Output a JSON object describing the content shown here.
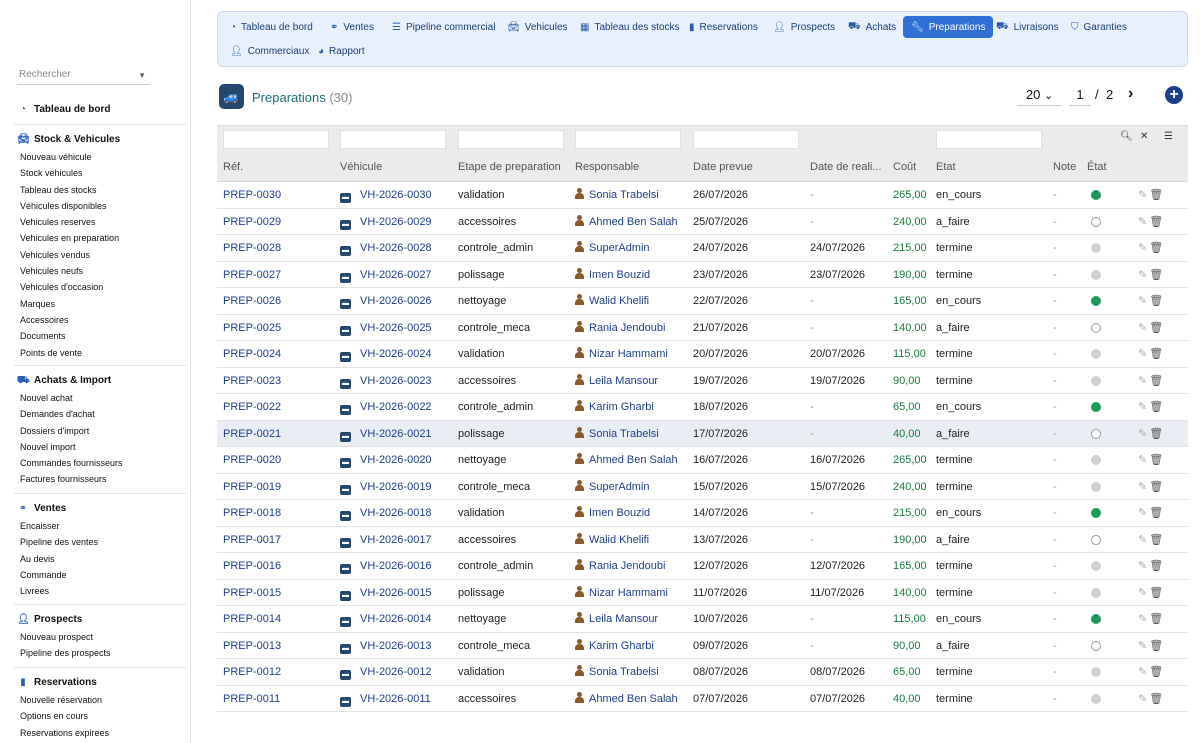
{
  "sidebar": {
    "search_placeholder": "Rechercher",
    "dashboard": "Tableau de bord",
    "sections": [
      {
        "title": "Stock & Vehicules",
        "icon": "car-icon",
        "items": [
          "Nouveau véhicule",
          "Stock vehicules",
          "Tableau des stocks",
          "Véhicules disponibles",
          "Vehicules reserves",
          "Vehicules en preparation",
          "Vehicules vendus",
          "Vehicules neufs",
          "Vehicules d'occasion",
          "Marques",
          "Accessoires",
          "Documents",
          "Points de vente"
        ]
      },
      {
        "title": "Achats & Import",
        "icon": "truck-icon",
        "items": [
          "Nouvel achat",
          "Demandes d'achat",
          "Dossiers d'import",
          "Nouvel import",
          "Commandes fournisseurs",
          "Factures fournisseurs"
        ]
      },
      {
        "title": "Ventes",
        "icon": "handshake-icon",
        "items": [
          "Encaisser",
          "Pipeline des ventes",
          "Au devis",
          "Commande",
          "Livrees"
        ]
      },
      {
        "title": "Prospects",
        "icon": "user-plus-icon",
        "items": [
          "Nouveau prospect",
          "Pipeline des prospects"
        ]
      },
      {
        "title": "Reservations",
        "icon": "bookmark-icon",
        "items": [
          "Nouvelle réservation",
          "Options en cours",
          "Reservations expirees"
        ]
      }
    ]
  },
  "topnav": {
    "tabs": [
      {
        "label": "Tableau de bord",
        "icon": "gauge-icon"
      },
      {
        "label": "Ventes",
        "icon": "handshake-icon"
      },
      {
        "label": "Pipeline commercial",
        "icon": "list-icon"
      },
      {
        "label": "Vehicules",
        "icon": "car-icon"
      },
      {
        "label": "Tableau des stocks",
        "icon": "grid-icon"
      },
      {
        "label": "Reservations",
        "icon": "bookmark-icon"
      },
      {
        "label": "Prospects",
        "icon": "user-plus-icon"
      },
      {
        "label": "Achats",
        "icon": "truck-icon"
      },
      {
        "label": "Preparations",
        "icon": "wrench-icon",
        "active": true
      },
      {
        "label": "Livraisons",
        "icon": "delivery-truck-icon"
      },
      {
        "label": "Garanties",
        "icon": "shield-icon"
      },
      {
        "label": "Commerciaux",
        "icon": "user-icon"
      },
      {
        "label": "Rapport",
        "icon": "pie-chart-icon"
      }
    ]
  },
  "header": {
    "title": "Preparations",
    "count": "(30)",
    "per_page": "20",
    "per_page_caret": "⌄",
    "page_current": "1",
    "page_sep": "/",
    "page_total": "2",
    "next": "›",
    "add": "+"
  },
  "table": {
    "columns": [
      "Réf.",
      "Véhicule",
      "Etape de preparation",
      "Responsable",
      "Date prevue",
      "Date de reali...",
      "Coût",
      "Etat",
      "Note",
      "État"
    ],
    "rows": [
      {
        "ref": "PREP-0030",
        "vehicle": "VH-2026-0030",
        "stage": "validation",
        "person": "Sonia Trabelsi",
        "planned": "26/07/2026",
        "done": "-",
        "cost": "265,00",
        "state": "en_cours",
        "note": "-",
        "status": "green"
      },
      {
        "ref": "PREP-0029",
        "vehicle": "VH-2026-0029",
        "stage": "accessoires",
        "person": "Ahmed Ben Salah",
        "planned": "25/07/2026",
        "done": "-",
        "cost": "240,00",
        "state": "a_faire",
        "note": "-",
        "status": "empty"
      },
      {
        "ref": "PREP-0028",
        "vehicle": "VH-2026-0028",
        "stage": "controle_admin",
        "person": "SuperAdmin",
        "planned": "24/07/2026",
        "done": "24/07/2026",
        "cost": "215,00",
        "state": "termine",
        "note": "-",
        "status": "grey"
      },
      {
        "ref": "PREP-0027",
        "vehicle": "VH-2026-0027",
        "stage": "polissage",
        "person": "Imen Bouzid",
        "planned": "23/07/2026",
        "done": "23/07/2026",
        "cost": "190,00",
        "state": "termine",
        "note": "-",
        "status": "grey"
      },
      {
        "ref": "PREP-0026",
        "vehicle": "VH-2026-0026",
        "stage": "nettoyage",
        "person": "Walid Khelifi",
        "planned": "22/07/2026",
        "done": "-",
        "cost": "165,00",
        "state": "en_cours",
        "note": "-",
        "status": "green"
      },
      {
        "ref": "PREP-0025",
        "vehicle": "VH-2026-0025",
        "stage": "controle_meca",
        "person": "Rania Jendoubi",
        "planned": "21/07/2026",
        "done": "-",
        "cost": "140,00",
        "state": "a_faire",
        "note": "-",
        "status": "empty"
      },
      {
        "ref": "PREP-0024",
        "vehicle": "VH-2026-0024",
        "stage": "validation",
        "person": "Nizar Hammami",
        "planned": "20/07/2026",
        "done": "20/07/2026",
        "cost": "115,00",
        "state": "termine",
        "note": "-",
        "status": "grey"
      },
      {
        "ref": "PREP-0023",
        "vehicle": "VH-2026-0023",
        "stage": "accessoires",
        "person": "Leila Mansour",
        "planned": "19/07/2026",
        "done": "19/07/2026",
        "cost": "90,00",
        "state": "termine",
        "note": "-",
        "status": "grey"
      },
      {
        "ref": "PREP-0022",
        "vehicle": "VH-2026-0022",
        "stage": "controle_admin",
        "person": "Karim Gharbi",
        "planned": "18/07/2026",
        "done": "-",
        "cost": "65,00",
        "state": "en_cours",
        "note": "-",
        "status": "green"
      },
      {
        "ref": "PREP-0021",
        "vehicle": "VH-2026-0021",
        "stage": "polissage",
        "person": "Sonia Trabelsi",
        "planned": "17/07/2026",
        "done": "-",
        "cost": "40,00",
        "state": "a_faire",
        "note": "-",
        "status": "empty",
        "highlight": true
      },
      {
        "ref": "PREP-0020",
        "vehicle": "VH-2026-0020",
        "stage": "nettoyage",
        "person": "Ahmed Ben Salah",
        "planned": "16/07/2026",
        "done": "16/07/2026",
        "cost": "265,00",
        "state": "termine",
        "note": "-",
        "status": "grey"
      },
      {
        "ref": "PREP-0019",
        "vehicle": "VH-2026-0019",
        "stage": "controle_meca",
        "person": "SuperAdmin",
        "planned": "15/07/2026",
        "done": "15/07/2026",
        "cost": "240,00",
        "state": "termine",
        "note": "-",
        "status": "grey"
      },
      {
        "ref": "PREP-0018",
        "vehicle": "VH-2026-0018",
        "stage": "validation",
        "person": "Imen Bouzid",
        "planned": "14/07/2026",
        "done": "-",
        "cost": "215,00",
        "state": "en_cours",
        "note": "-",
        "status": "green"
      },
      {
        "ref": "PREP-0017",
        "vehicle": "VH-2026-0017",
        "stage": "accessoires",
        "person": "Walid Khelifi",
        "planned": "13/07/2026",
        "done": "-",
        "cost": "190,00",
        "state": "a_faire",
        "note": "-",
        "status": "empty"
      },
      {
        "ref": "PREP-0016",
        "vehicle": "VH-2026-0016",
        "stage": "controle_admin",
        "person": "Rania Jendoubi",
        "planned": "12/07/2026",
        "done": "12/07/2026",
        "cost": "165,00",
        "state": "termine",
        "note": "-",
        "status": "grey"
      },
      {
        "ref": "PREP-0015",
        "vehicle": "VH-2026-0015",
        "stage": "polissage",
        "person": "Nizar Hammami",
        "planned": "11/07/2026",
        "done": "11/07/2026",
        "cost": "140,00",
        "state": "termine",
        "note": "-",
        "status": "grey"
      },
      {
        "ref": "PREP-0014",
        "vehicle": "VH-2026-0014",
        "stage": "nettoyage",
        "person": "Leila Mansour",
        "planned": "10/07/2026",
        "done": "-",
        "cost": "115,00",
        "state": "en_cours",
        "note": "-",
        "status": "green"
      },
      {
        "ref": "PREP-0013",
        "vehicle": "VH-2026-0013",
        "stage": "controle_meca",
        "person": "Karim Gharbi",
        "planned": "09/07/2026",
        "done": "-",
        "cost": "90,00",
        "state": "a_faire",
        "note": "-",
        "status": "empty"
      },
      {
        "ref": "PREP-0012",
        "vehicle": "VH-2026-0012",
        "stage": "validation",
        "person": "Sonia Trabelsi",
        "planned": "08/07/2026",
        "done": "08/07/2026",
        "cost": "65,00",
        "state": "termine",
        "note": "-",
        "status": "grey"
      },
      {
        "ref": "PREP-0011",
        "vehicle": "VH-2026-0011",
        "stage": "accessoires",
        "person": "Ahmed Ben Salah",
        "planned": "07/07/2026",
        "done": "07/07/2026",
        "cost": "40,00",
        "state": "termine",
        "note": "-",
        "status": "grey"
      }
    ]
  },
  "colors": {
    "accent": "#2f6fd6",
    "link": "#1e3f8a",
    "cost": "#197a3a",
    "status_green": "#1f9a5a",
    "title": "#1a6f77"
  }
}
